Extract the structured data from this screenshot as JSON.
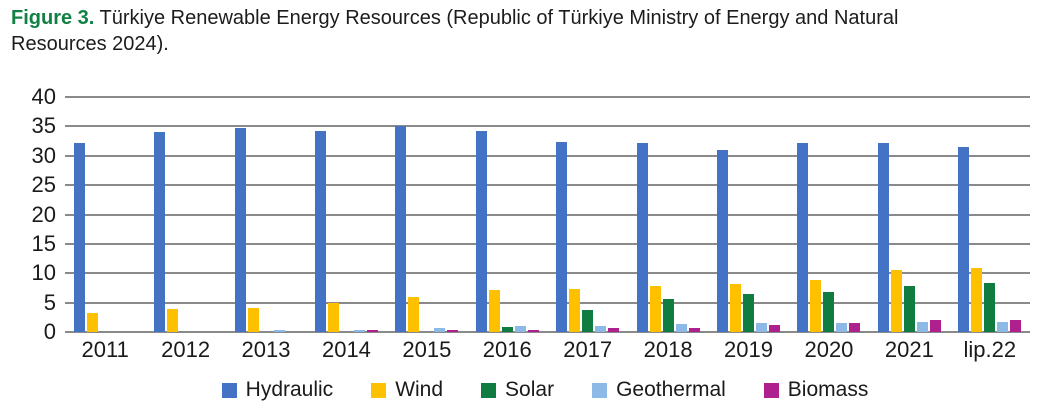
{
  "caption": {
    "prefix": "Figure 3.",
    "line1": " Türkiye Renewable Energy Resources (Republic of Türkiye Ministry of Energy and Natural",
    "line2": "Resources 2024)."
  },
  "colors": {
    "caption_prefix": "#128044",
    "gridline": "#8a8a8a",
    "text": "#1a1a1a",
    "background": "#ffffff"
  },
  "chart_data": {
    "type": "bar",
    "title": "",
    "xlabel": "",
    "ylabel": "",
    "ylim": [
      0,
      40
    ],
    "ytick_step": 5,
    "ytick_labels": [
      "0",
      "5",
      "10",
      "15",
      "20",
      "25",
      "30",
      "35",
      "40"
    ],
    "grid": "horizontal",
    "legend_position": "bottom",
    "categories": [
      "2011",
      "2012",
      "2013",
      "2014",
      "2015",
      "2016",
      "2017",
      "2018",
      "2019",
      "2020",
      "2021",
      "lip.22"
    ],
    "series": [
      {
        "name": "Hydraulic",
        "color": "#4472C4",
        "values": [
          32.2,
          34.1,
          34.8,
          34.2,
          35.0,
          34.2,
          32.4,
          32.2,
          31.0,
          32.2,
          32.2,
          31.5
        ]
      },
      {
        "name": "Wind",
        "color": "#FFC000",
        "values": [
          3.2,
          3.9,
          4.1,
          5.0,
          6.0,
          7.2,
          7.4,
          7.8,
          8.2,
          8.9,
          10.6,
          10.9
        ]
      },
      {
        "name": "Solar",
        "color": "#107C41",
        "values": [
          0,
          0,
          0,
          0,
          0,
          0.8,
          3.7,
          5.6,
          6.4,
          6.8,
          7.8,
          8.4
        ]
      },
      {
        "name": "Geothermal",
        "color": "#8CB9E5",
        "values": [
          0,
          0,
          0.4,
          0.4,
          0.7,
          1.0,
          1.0,
          1.3,
          1.6,
          1.6,
          1.7,
          1.7
        ]
      },
      {
        "name": "Biomass",
        "color": "#AE208E",
        "values": [
          0,
          0,
          0,
          0.3,
          0.3,
          0.4,
          0.6,
          0.7,
          1.2,
          1.5,
          2.0,
          2.1
        ]
      }
    ]
  }
}
